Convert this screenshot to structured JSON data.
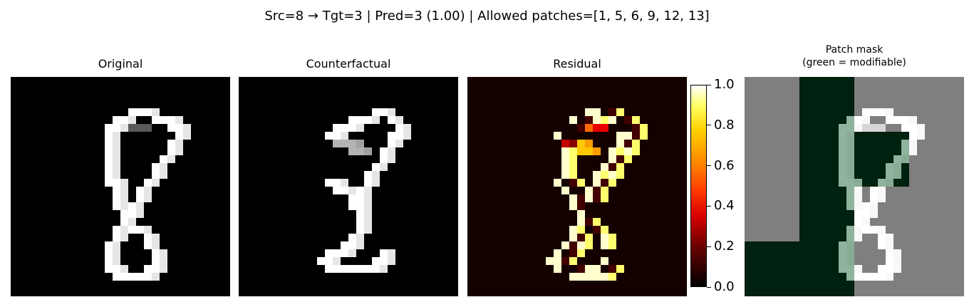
{
  "figure": {
    "suptitle": "Src=8 → Tgt=3 | Pred=3 (1.00) | Allowed patches=[1, 5, 6, 9, 12, 13]"
  },
  "panels": [
    {
      "title": "Original"
    },
    {
      "title": "Counterfactual"
    },
    {
      "title": "Residual"
    },
    {
      "title_line1": "Patch mask",
      "title_line2": "(green = modifiable)"
    }
  ],
  "chart_data": {
    "type": "heatmap",
    "grid_size": 28,
    "patch_grid": 4,
    "patch_pixels": 7,
    "allowed_patches": [
      1,
      5,
      6,
      9,
      12,
      13
    ],
    "colorbar": {
      "colormap": "hot",
      "range": [
        0.0,
        1.0
      ],
      "ticks": [
        "0.0",
        "0.2",
        "0.4",
        "0.6",
        "0.8",
        "1.0"
      ],
      "tick_values": [
        0.0,
        0.2,
        0.4,
        0.6,
        0.8,
        1.0
      ]
    },
    "colors": {
      "mask_green": "#002010",
      "mask_gray": "#7f7f7f",
      "background": "#000000"
    }
  }
}
